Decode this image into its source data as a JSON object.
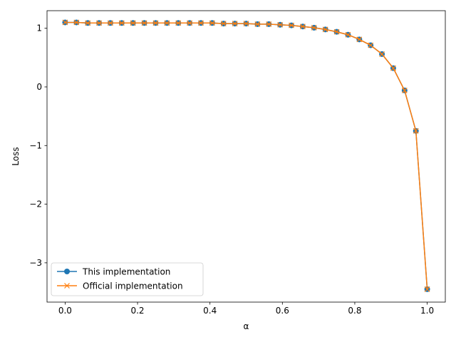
{
  "chart_data": {
    "type": "line",
    "title": "",
    "xlabel": "α",
    "ylabel": "Loss",
    "xlim": [
      -0.05,
      1.05
    ],
    "ylim": [
      -3.67,
      1.3
    ],
    "xticks": [
      0.0,
      0.2,
      0.4,
      0.6,
      0.8,
      1.0
    ],
    "xtick_labels": [
      "0.0",
      "0.2",
      "0.4",
      "0.6",
      "0.8",
      "1.0"
    ],
    "yticks": [
      1,
      0,
      -1,
      -2,
      -3
    ],
    "ytick_labels": [
      "1",
      "0",
      "−1",
      "−2",
      "−3"
    ],
    "grid": false,
    "legend_position": "lower-left",
    "x": [
      0.0,
      0.03125,
      0.0625,
      0.09375,
      0.125,
      0.15625,
      0.1875,
      0.21875,
      0.25,
      0.28125,
      0.3125,
      0.34375,
      0.375,
      0.40625,
      0.4375,
      0.46875,
      0.5,
      0.53125,
      0.5625,
      0.59375,
      0.625,
      0.65625,
      0.6875,
      0.71875,
      0.75,
      0.78125,
      0.8125,
      0.84375,
      0.875,
      0.90625,
      0.9375,
      0.96875,
      1.0
    ],
    "series": [
      {
        "name": "This implementation",
        "marker": "circle",
        "color": "#1f77b4",
        "values": [
          1.1,
          1.1,
          1.09,
          1.09,
          1.09,
          1.09,
          1.09,
          1.09,
          1.09,
          1.09,
          1.09,
          1.09,
          1.09,
          1.09,
          1.08,
          1.08,
          1.08,
          1.07,
          1.07,
          1.06,
          1.05,
          1.03,
          1.01,
          0.98,
          0.94,
          0.89,
          0.81,
          0.71,
          0.56,
          0.32,
          -0.06,
          -0.75,
          -3.45
        ]
      },
      {
        "name": "Official implementation",
        "marker": "x",
        "color": "#ff7f0e",
        "values": [
          1.1,
          1.1,
          1.09,
          1.09,
          1.09,
          1.09,
          1.09,
          1.09,
          1.09,
          1.09,
          1.09,
          1.09,
          1.09,
          1.09,
          1.08,
          1.08,
          1.08,
          1.07,
          1.07,
          1.06,
          1.05,
          1.03,
          1.01,
          0.98,
          0.94,
          0.89,
          0.81,
          0.71,
          0.56,
          0.32,
          -0.06,
          -0.75,
          -3.45
        ]
      }
    ]
  }
}
